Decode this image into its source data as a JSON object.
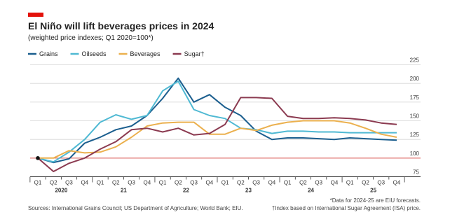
{
  "chart_data": {
    "type": "line",
    "title": "El Niño will lift beverages prices in 2024",
    "subtitle": "(weighted price indexes; Q1 2020=100*)",
    "categories": [
      "Q1",
      "Q2",
      "Q3",
      "Q4",
      "Q1",
      "Q2",
      "Q3",
      "Q4",
      "Q1",
      "Q2",
      "Q3",
      "Q4",
      "Q1",
      "Q2",
      "Q3",
      "Q4",
      "Q1",
      "Q2",
      "Q3",
      "Q4",
      "Q1",
      "Q2",
      "Q3",
      "Q4"
    ],
    "years": [
      "2020",
      "21",
      "22",
      "23",
      "24",
      "25"
    ],
    "series": [
      {
        "name": "Grains",
        "color": "#1b5e8e",
        "values": [
          100,
          94,
          99,
          120,
          128,
          138,
          143,
          157,
          180,
          207,
          175,
          185,
          168,
          157,
          136,
          125,
          127,
          127,
          126,
          125,
          127,
          126,
          125,
          124
        ]
      },
      {
        "name": "Oilseeds",
        "color": "#4fb9d3",
        "values": [
          100,
          95,
          108,
          125,
          148,
          158,
          152,
          157,
          190,
          203,
          165,
          157,
          153,
          140,
          138,
          133,
          136,
          136,
          135,
          135,
          134,
          134,
          134,
          134
        ]
      },
      {
        "name": "Beverages",
        "color": "#ebb04e",
        "values": [
          100,
          100,
          110,
          107,
          108,
          115,
          128,
          143,
          147,
          148,
          148,
          132,
          132,
          140,
          137,
          144,
          148,
          150,
          150,
          150,
          147,
          140,
          132,
          128
        ]
      },
      {
        "name": "Sugar†",
        "color": "#8b3a50",
        "values": [
          100,
          82,
          93,
          100,
          112,
          122,
          138,
          140,
          135,
          140,
          131,
          133,
          145,
          181,
          181,
          180,
          156,
          153,
          153,
          154,
          153,
          151,
          147,
          145
        ]
      }
    ],
    "ylim": [
      75,
      225
    ],
    "yticks": [
      75,
      100,
      125,
      150,
      175,
      200,
      225
    ],
    "grid": true,
    "baseline": 100,
    "source": "Sources: International Grains Council; US Department of Agriculture; World Bank; EIU.",
    "notes": [
      "*Data for 2024-25 are EIU forecasts.",
      "†Index based on International Sugar Agreement (ISA) price."
    ]
  }
}
